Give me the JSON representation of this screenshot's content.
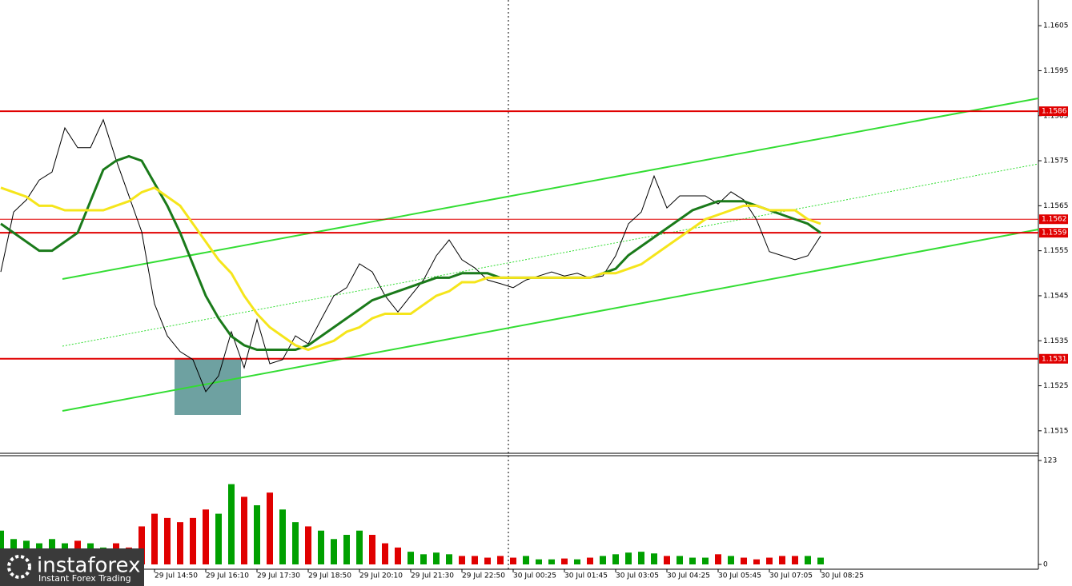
{
  "chart_data": {
    "type": "line",
    "categories": [
      null,
      null,
      null,
      null,
      null,
      null,
      null,
      null,
      null,
      null,
      null,
      null,
      "29 Jul 14:50",
      null,
      null,
      null,
      "29 Jul 16:10",
      null,
      null,
      null,
      "29 Jul 17:30",
      null,
      null,
      null,
      "29 Jul 18:50",
      null,
      null,
      null,
      "29 Jul 20:10",
      null,
      null,
      null,
      "29 Jul 21:30",
      null,
      null,
      null,
      "29 Jul 22:50",
      null,
      null,
      null,
      "30 Jul 00:25",
      null,
      null,
      null,
      "30 Jul 01:45",
      null,
      null,
      null,
      "30 Jul 03:05",
      null,
      null,
      null,
      "30 Jul 04:25",
      null,
      null,
      null,
      "30 Jul 05:45",
      null,
      null,
      null,
      "30 Jul 07:05",
      null,
      null,
      null,
      "30 Jul 08:25"
    ],
    "series": [
      {
        "color": "#000000",
        "values": [
          1.15503,
          1.15636,
          1.15663,
          1.15707,
          1.15725,
          1.15823,
          1.15779,
          1.15779,
          1.15841,
          1.15752,
          1.15672,
          1.15592,
          1.15432,
          1.15361,
          1.15326,
          1.15308,
          1.15237,
          1.15272,
          1.1537,
          1.1529,
          1.15397,
          1.15299,
          1.15308,
          1.15361,
          1.15343,
          1.15397,
          1.1545,
          1.15468,
          1.15521,
          1.15503,
          1.1545,
          1.15414,
          1.1545,
          1.15485,
          1.15539,
          1.15574,
          1.1553,
          1.15512,
          1.15485,
          1.15477,
          1.15468,
          1.15485,
          1.15494,
          1.15503,
          1.15494,
          1.155,
          1.15489,
          1.15494,
          1.15539,
          1.1561,
          1.15636,
          1.15716,
          1.15645,
          1.15672,
          1.15672,
          1.15672,
          1.15654,
          1.15681,
          1.15663,
          1.15619,
          1.15548,
          1.15539,
          1.1553,
          1.15539,
          1.15583
        ]
      },
      {
        "color": "#1a7a1a",
        "values": [
          1.1561,
          1.1559,
          1.1557,
          1.1555,
          1.1555,
          1.1557,
          1.1559,
          1.1566,
          1.1573,
          1.1575,
          1.1576,
          1.1575,
          1.157,
          1.1565,
          1.1559,
          1.1552,
          1.1545,
          1.154,
          1.1536,
          1.1534,
          1.1533,
          1.1533,
          1.1533,
          1.1533,
          1.1534,
          1.1536,
          1.1538,
          1.154,
          1.1542,
          1.1544,
          1.1545,
          1.1546,
          1.1547,
          1.1548,
          1.1549,
          1.1549,
          1.155,
          1.155,
          1.155,
          1.1549,
          1.1549,
          1.1549,
          1.1549,
          1.1549,
          1.1549,
          1.1549,
          1.1549,
          1.155,
          1.1551,
          1.1554,
          1.1556,
          1.1558,
          1.156,
          1.1562,
          1.1564,
          1.1565,
          1.1566,
          1.1566,
          1.1566,
          1.1565,
          1.1564,
          1.1563,
          1.1562,
          1.1561,
          1.1559
        ]
      },
      {
        "color": "#f5e51b",
        "values": [
          1.1569,
          1.1568,
          1.1567,
          1.1565,
          1.1565,
          1.1564,
          1.1564,
          1.1564,
          1.1564,
          1.1565,
          1.1566,
          1.1568,
          1.1569,
          1.1567,
          1.1565,
          1.1561,
          1.1557,
          1.1553,
          1.155,
          1.1545,
          1.1541,
          1.1538,
          1.1536,
          1.1534,
          1.1533,
          1.1534,
          1.1535,
          1.1537,
          1.1538,
          1.154,
          1.1541,
          1.1541,
          1.1541,
          1.1543,
          1.1545,
          1.1546,
          1.1548,
          1.1548,
          1.1549,
          1.1549,
          1.1549,
          1.1549,
          1.1549,
          1.1549,
          1.1549,
          1.1549,
          1.1549,
          1.155,
          1.155,
          1.1551,
          1.1552,
          1.1554,
          1.1556,
          1.1558,
          1.156,
          1.1562,
          1.1563,
          1.1564,
          1.1565,
          1.1565,
          1.1564,
          1.1564,
          1.1564,
          1.1562,
          1.1561
        ]
      }
    ],
    "ylim": [
      1.151,
      1.161
    ],
    "yticks": [
      1.1515,
      1.1525,
      1.1535,
      1.1545,
      1.1555,
      1.1565,
      1.1575,
      1.1585,
      1.1595,
      1.1605
    ],
    "levels": [
      1.1586,
      1.1562,
      1.1559,
      1.1531
    ],
    "level_color": "#e00000",
    "volume": {
      "values": [
        40,
        30,
        28,
        25,
        30,
        25,
        28,
        25,
        20,
        25,
        20,
        45,
        60,
        55,
        50,
        55,
        65,
        60,
        95,
        80,
        70,
        85,
        65,
        50,
        45,
        40,
        30,
        35,
        40,
        35,
        25,
        20,
        15,
        12,
        14,
        12,
        10,
        10,
        8,
        10,
        8,
        10,
        6,
        6,
        7,
        6,
        8,
        10,
        12,
        14,
        15,
        13,
        10,
        10,
        8,
        8,
        12,
        10,
        8,
        6,
        8,
        10,
        10,
        10,
        8
      ],
      "up_color": "#00a000",
      "down_color": "#e00000",
      "ylim": [
        0,
        123
      ],
      "yticks": [
        0,
        123
      ]
    },
    "logo": {
      "name": "instaforex",
      "tagline": "Instant Forex Trading"
    }
  }
}
